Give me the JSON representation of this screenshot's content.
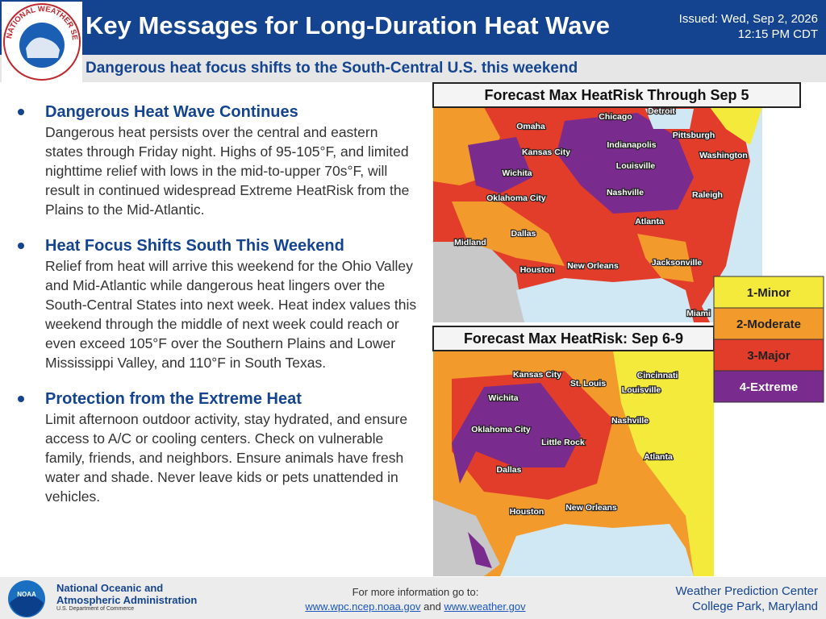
{
  "header": {
    "title": "Key Messages for Long-Duration Heat Wave",
    "issued_line1": "Issued: Wed, Sep 2, 2026",
    "issued_line2": "12:15 PM CDT",
    "subtitle": "Dangerous heat focus shifts to the South-Central U.S. this weekend",
    "logo_text": "NATIONAL WEATHER SERVICE"
  },
  "messages": [
    {
      "heading": "Dangerous Heat Wave Continues",
      "body": "Dangerous heat persists over the central and eastern states through Friday night. Highs of 95-105°F, and limited nighttime relief with lows in the mid-to-upper 70s°F, will result in continued widespread Extreme HeatRisk from the Plains to the Mid-Atlantic."
    },
    {
      "heading": "Heat Focus Shifts South This Weekend",
      "body": "Relief from heat will arrive this weekend for the Ohio Valley and Mid-Atlantic while dangerous heat lingers over the South-Central States into next week. Heat index values this weekend through the middle of next week could reach or even exceed 105°F over the Southern Plains and Lower Mississippi Valley, and 110°F in South Texas."
    },
    {
      "heading": "Protection from the Extreme Heat",
      "body": "Limit afternoon outdoor activity, stay hydrated, and ensure access to A/C or cooling centers. Check on vulnerable family, friends, and neighbors. Ensure animals have fresh water and shade. Never leave kids or pets unattended in vehicles."
    }
  ],
  "maps": [
    {
      "title": "Forecast Max HeatRisk Through Sep 5",
      "cities": [
        "Detroit",
        "Chicago",
        "Omaha",
        "Pittsburgh",
        "Indianapolis",
        "Kansas City",
        "Washington",
        "Wichita",
        "Louisville",
        "Oklahoma City",
        "Nashville",
        "Raleigh",
        "Atlanta",
        "Dallas",
        "Midland",
        "New Orleans",
        "Jacksonville",
        "Houston",
        "Miami"
      ]
    },
    {
      "title": "Forecast Max HeatRisk: Sep 6-9",
      "cities": [
        "Kansas City",
        "Cincinnati",
        "St. Louis",
        "Louisville",
        "Wichita",
        "Nashville",
        "Oklahoma City",
        "Little Rock",
        "Atlanta",
        "Dallas",
        "Houston",
        "New Orleans"
      ]
    }
  ],
  "legend": [
    {
      "label": "1-Minor",
      "color": "#f4ea3c"
    },
    {
      "label": "2-Moderate",
      "color": "#f39a2c"
    },
    {
      "label": "3-Major",
      "color": "#e23c2b"
    },
    {
      "label": "4-Extreme",
      "color": "#7a2b8e"
    }
  ],
  "footer": {
    "logo_text": "NOAA",
    "agency_line1": "National Oceanic and",
    "agency_line2": "Atmospheric Administration",
    "department": "U.S. Department of Commerce",
    "more_info": "For more information go to:",
    "link_1": "www.wpc.ncep.noaa.gov",
    "link_joiner": "and",
    "link_2": "www.weather.gov",
    "center": "Weather Prediction Center",
    "location": "College Park, Maryland"
  }
}
